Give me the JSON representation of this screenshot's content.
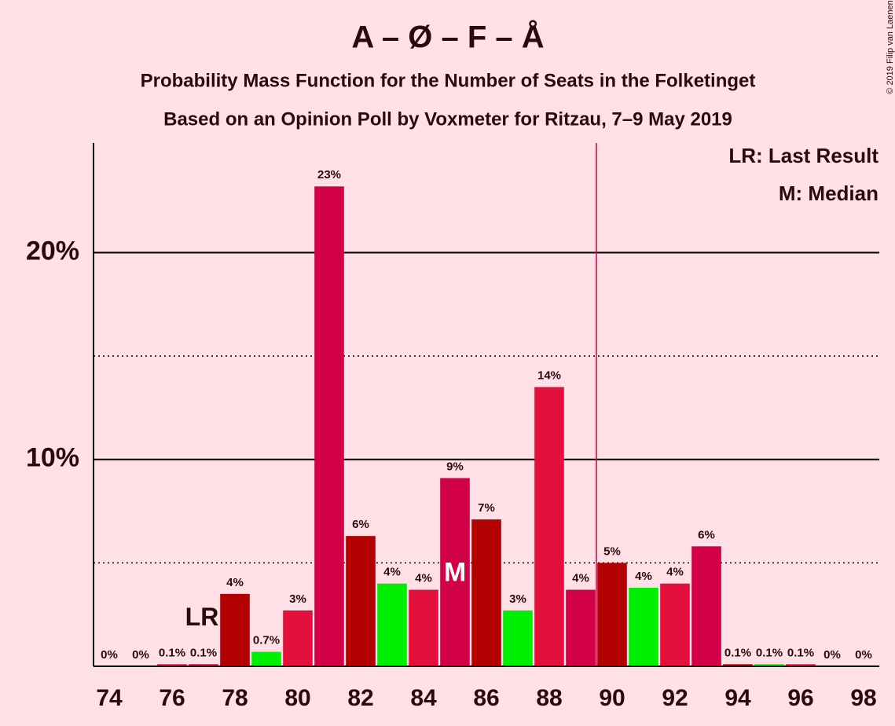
{
  "chart_data": {
    "type": "bar",
    "title": "A – Ø – F – Å",
    "subtitle": "Probability Mass Function for the Number of Seats in the Folketinget",
    "subtitle2": "Based on an Opinion Poll by Voxmeter for Ritzau, 7–9 May 2019",
    "copyright": "© 2019 Filip van Laenen",
    "x": [
      74,
      75,
      76,
      77,
      78,
      79,
      80,
      81,
      82,
      83,
      84,
      85,
      86,
      87,
      88,
      89,
      90,
      91,
      92,
      93,
      94,
      95,
      96,
      97,
      98
    ],
    "values": [
      0,
      0,
      0.1,
      0.1,
      3.5,
      0.7,
      2.7,
      23.2,
      6.3,
      4.0,
      3.7,
      9.1,
      7.1,
      2.7,
      13.5,
      3.7,
      5.0,
      3.8,
      4.0,
      5.8,
      0.1,
      0.1,
      0.1,
      0,
      0
    ],
    "value_labels": [
      "0%",
      "0%",
      "0.1%",
      "0.1%",
      "4%",
      "0.7%",
      "3%",
      "23%",
      "6%",
      "4%",
      "4%",
      "9%",
      "7%",
      "3%",
      "14%",
      "4%",
      "5%",
      "4%",
      "4%",
      "6%",
      "0.1%",
      "0.1%",
      "0.1%",
      "0%",
      "0%"
    ],
    "palette": [
      "#b30000",
      "#00ee00",
      "#e3103e",
      "#d10047"
    ],
    "xlim": [
      73.5,
      98.5
    ],
    "xticks": [
      74,
      76,
      78,
      80,
      82,
      84,
      86,
      88,
      90,
      92,
      94,
      96,
      98
    ],
    "ylim": [
      0,
      25.3
    ],
    "yticks": [
      {
        "value": 10,
        "label": "10%"
      },
      {
        "value": 20,
        "label": "20%"
      }
    ],
    "minor_yticks": [
      5,
      15
    ],
    "threshold": 89.5,
    "threshold_color": "#d10047",
    "annotations": [
      {
        "x": 77,
        "text": "LR"
      },
      {
        "x": 85,
        "text": "M"
      }
    ],
    "legend": [
      "LR: Last Result",
      "M: Median"
    ],
    "grid": true
  }
}
